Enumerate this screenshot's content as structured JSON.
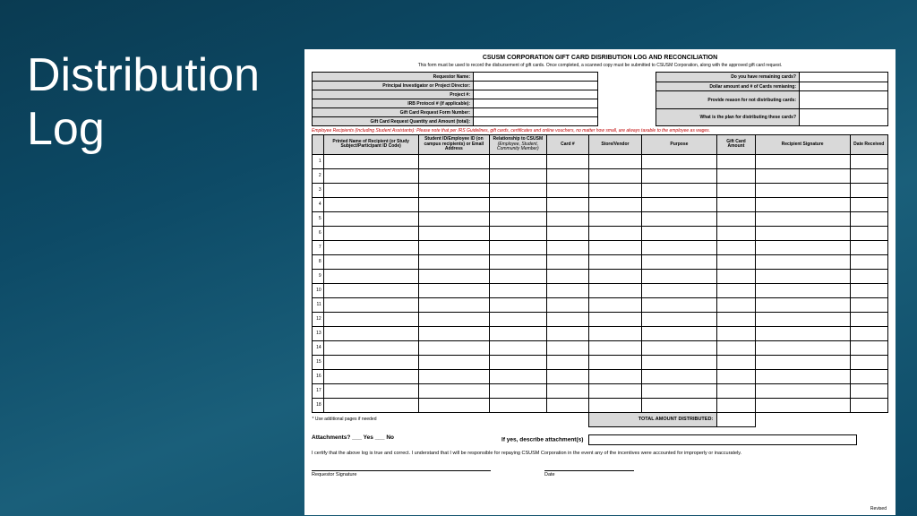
{
  "slide": {
    "title_line1": "Distribution",
    "title_line2": "Log"
  },
  "form": {
    "title": "CSUSM CORPORATION GIFT CARD DISRIBUTION LOG AND RECONCILIATION",
    "subtitle": "This form must be used to record the disbursement of gift cards. Once completed, a scanned copy must be submitted to CSUSM Corporation, along with the approved gift card request.",
    "left_fields": [
      "Requestor Name:",
      "Principal Investigator or Project Director:",
      "Project #:",
      "IRB Protocol # (if applicable):",
      "Gift Card Request Form Number:",
      "Gift Card Request Quantity and Amount (total):"
    ],
    "right_fields": [
      "Do you have remaining cards?",
      "Dollar amount and # of Cards remianing:",
      "Provide reason for not distributing cards:",
      "What is the plan for distributing these cards?"
    ],
    "note": "Employee Recipients (Including Student Assistants): Please note that per IRS Guidelines, gift cards, certificates and online vouchers, no matter how small, are always taxable to the employee as wages.",
    "columns": {
      "name": "Printed Name of Recipient (or Study Subject/Participant ID Code)",
      "id": "Student ID/Employee ID (on campus recipients) or Email Address",
      "rel_main": "Relationship to CSUSM",
      "rel_sub": "(Employee, Student, Community Member)",
      "card": "Card #",
      "store": "Store/Vendor",
      "purpose": "Purpose",
      "amount": "Gift Card Amount",
      "signature": "Recipient Signature",
      "date": "Date Received"
    },
    "row_count": 18,
    "footnote": "* Use additional pages if needed",
    "total_label": "TOTAL AMOUNT DISTRIBUTED:",
    "attachments_q": "Attachments? ___ Yes ___ No",
    "attachments_desc": "If yes, describe attachment(s)",
    "certification": "I certify that the above log is true and correct.  I understand that I will be responsible for repaying CSUSM Corporation in the event any of the incentives were accounted for improperly or inaccurately.",
    "sig_label": "Requestor Signature",
    "date_label": "Date",
    "revised": "Revised"
  },
  "colors": {
    "header_bg": "#d9d9d9",
    "note_color": "#c00000"
  }
}
